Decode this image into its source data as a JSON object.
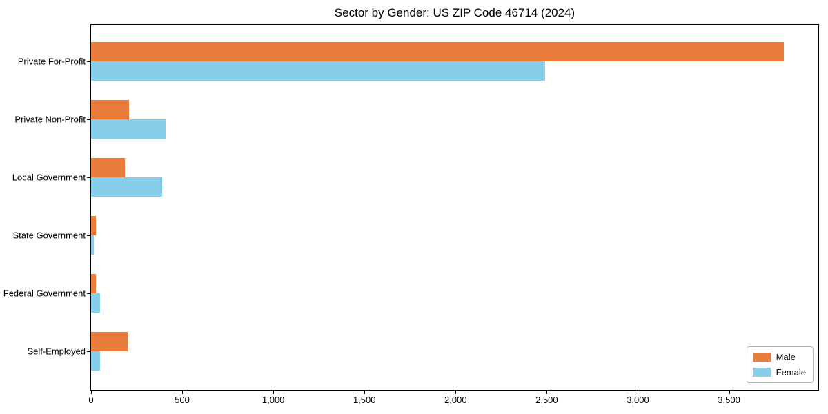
{
  "chart_data": {
    "type": "bar",
    "orientation": "horizontal",
    "title": "Sector by Gender: US ZIP Code 46714 (2024)",
    "categories": [
      "Private For-Profit",
      "Private Non-Profit",
      "Local Government",
      "State Government",
      "Federal Government",
      "Self-Employed"
    ],
    "series": [
      {
        "name": "Male",
        "color": "#e87d3b",
        "values": [
          3800,
          210,
          185,
          25,
          25,
          200
        ]
      },
      {
        "name": "Female",
        "color": "#87ceeb",
        "values": [
          2490,
          410,
          390,
          15,
          50,
          50
        ]
      }
    ],
    "xlabel": "",
    "ylabel": "",
    "xlim": [
      0,
      3990
    ],
    "xticks": [
      0,
      500,
      1000,
      1500,
      2000,
      2500,
      3000,
      3500
    ],
    "xtick_labels": [
      "0",
      "500",
      "1,000",
      "1,500",
      "2,000",
      "2,500",
      "3,000",
      "3,500"
    ],
    "grid": false,
    "legend_position": "lower right",
    "frame_color": "#000000"
  }
}
